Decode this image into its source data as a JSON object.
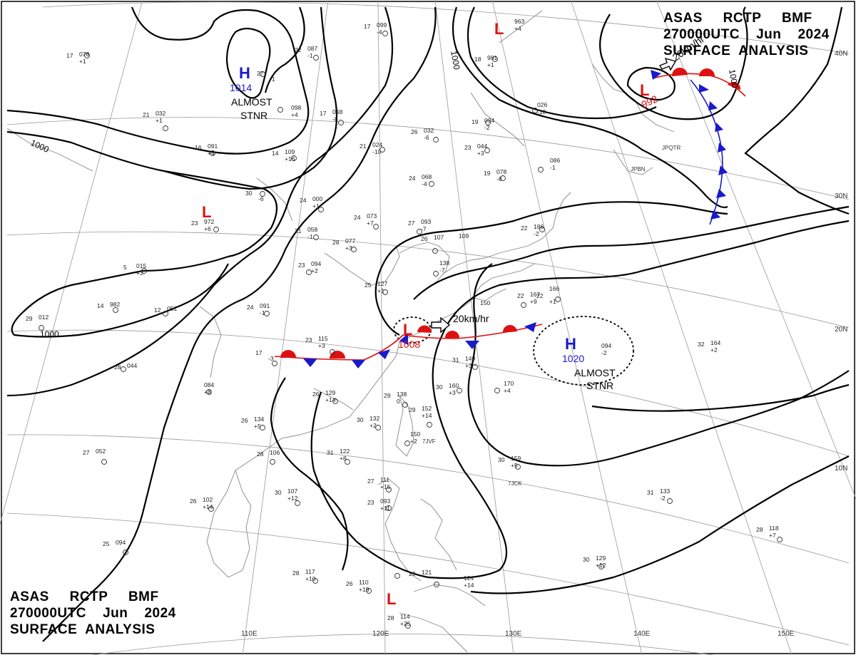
{
  "header": {
    "line1": "ASAS     RCTP     BMF",
    "line2": "270000UTC    Jun    2024",
    "line3": "SURFACE  ANALYSIS"
  },
  "map": {
    "lat_labels": [
      "40N",
      "30N",
      "20N",
      "10N"
    ],
    "lon_labels": [
      "110E",
      "120E",
      "130E",
      "140E",
      "150E"
    ],
    "isobar_labels": [
      "1000",
      "1000",
      "1000",
      "1000"
    ],
    "pressure_systems": [
      {
        "type": "H",
        "value": "1014",
        "note": "ALMOST STNR"
      },
      {
        "type": "L",
        "value": ""
      },
      {
        "type": "L",
        "value": ""
      },
      {
        "type": "L",
        "value": "992"
      },
      {
        "type": "L",
        "value": "1008"
      },
      {
        "type": "H",
        "value": "1020",
        "note": "ALMOST STNR"
      },
      {
        "type": "L",
        "value": ""
      }
    ],
    "note_almost": "ALMOST",
    "note_stnr": "STNR",
    "movement_labels": [
      "20km/hr",
      "20km/hr"
    ],
    "ship_ids": [
      "JPBN",
      "7JCK",
      "7JVF",
      "JPQTR"
    ],
    "colors": {
      "high": "#1a1acc",
      "low": "#dd1111",
      "front_warm": "#dd1111",
      "front_cold": "#1a1acc",
      "isobar": "#000000",
      "coast": "#888888",
      "grid": "#999999"
    },
    "stations": [
      {
        "t": "17",
        "p": "099",
        "w": "-4"
      },
      {
        "t": "22",
        "p": "087",
        "w": "-1"
      },
      {
        "t": "17",
        "p": "078",
        "w": "+1"
      },
      {
        "t": "27",
        "p": "",
        "w": "-1"
      },
      {
        "t": "",
        "p": "098",
        "w": "+4"
      },
      {
        "t": "21",
        "p": "032",
        "w": "+1"
      },
      {
        "t": "17",
        "p": "048",
        "w": "-8"
      },
      {
        "t": "18",
        "p": "981",
        "w": "+1"
      },
      {
        "t": "",
        "p": "963",
        "w": "+4"
      },
      {
        "t": "16",
        "p": "091",
        "w": "+4"
      },
      {
        "t": "14",
        "p": "109",
        "w": "+16"
      },
      {
        "t": "21",
        "p": "024",
        "w": "-10"
      },
      {
        "t": "26",
        "p": "032",
        "w": "-6"
      },
      {
        "t": "19",
        "p": "034",
        "w": "-2"
      },
      {
        "t": "",
        "p": "026",
        "w": "-10"
      },
      {
        "t": "23",
        "p": "044",
        "w": "+3"
      },
      {
        "t": "30",
        "p": "",
        "w": "-6"
      },
      {
        "t": "23",
        "p": "972",
        "w": "+6"
      },
      {
        "t": "24",
        "p": "000",
        "w": "+1"
      },
      {
        "t": "24",
        "p": "068",
        "w": "-4"
      },
      {
        "t": "19",
        "p": "078",
        "w": "-8"
      },
      {
        "t": "",
        "p": "086",
        "w": "-1"
      },
      {
        "t": "21",
        "p": "058",
        "w": "-1"
      },
      {
        "t": "24",
        "p": "073",
        "w": "+7"
      },
      {
        "t": "27",
        "p": "093",
        "w": "-7"
      },
      {
        "t": "28",
        "p": "077",
        "w": "+3"
      },
      {
        "t": "26",
        "p": "107",
        "w": ""
      },
      {
        "t": "",
        "p": "109",
        "w": ""
      },
      {
        "t": "22",
        "p": "186",
        "w": "-2"
      },
      {
        "t": "5",
        "p": "015",
        "w": "+3"
      },
      {
        "t": "23",
        "p": "094",
        "w": "+2"
      },
      {
        "t": "",
        "p": "138",
        "w": "-7"
      },
      {
        "t": "25",
        "p": "127",
        "w": "+1"
      },
      {
        "t": "14",
        "p": "982",
        "w": ""
      },
      {
        "t": "12",
        "p": "051",
        "w": ""
      },
      {
        "t": "24",
        "p": "091",
        "w": "-1"
      },
      {
        "t": "",
        "p": "150",
        "w": ""
      },
      {
        "t": "22",
        "p": "167",
        "w": "+9"
      },
      {
        "t": "22",
        "p": "",
        "w": "+1"
      },
      {
        "t": "",
        "p": "166",
        "w": ""
      },
      {
        "t": "29",
        "p": "012",
        "w": ""
      },
      {
        "t": "23",
        "p": "115",
        "w": "+3"
      },
      {
        "t": "17",
        "p": "",
        "w": "-3"
      },
      {
        "t": "",
        "p": "094",
        "w": "-2"
      },
      {
        "t": "32",
        "p": "164",
        "w": "+2"
      },
      {
        "t": "28",
        "p": "044",
        "w": ""
      },
      {
        "t": "31",
        "p": "149",
        "w": "+3"
      },
      {
        "t": "",
        "p": "170",
        "w": "+4"
      },
      {
        "t": "",
        "p": "084",
        "w": "+8"
      },
      {
        "t": "26",
        "p": "129",
        "w": "+14"
      },
      {
        "t": "29",
        "p": "138",
        "w": "0"
      },
      {
        "t": "30",
        "p": "160",
        "w": "+3"
      },
      {
        "t": "26",
        "p": "134",
        "w": "+5"
      },
      {
        "t": "30",
        "p": "132",
        "w": "+2"
      },
      {
        "t": "29",
        "p": "152",
        "w": "+14"
      },
      {
        "t": "",
        "p": "150",
        "w": "+2"
      },
      {
        "t": "28",
        "p": "106",
        "w": ""
      },
      {
        "t": "31",
        "p": "122",
        "w": "+8"
      },
      {
        "t": "27",
        "p": "052",
        "w": ""
      },
      {
        "t": "30",
        "p": "159",
        "w": "+5"
      },
      {
        "t": "27",
        "p": "111",
        "w": "+15"
      },
      {
        "t": "30",
        "p": "107",
        "w": "+12"
      },
      {
        "t": "26",
        "p": "102",
        "w": "+14"
      },
      {
        "t": "31",
        "p": "133",
        "w": "-2"
      },
      {
        "t": "23",
        "p": "093",
        "w": "+11"
      },
      {
        "t": "28",
        "p": "118",
        "w": "+7"
      },
      {
        "t": "25",
        "p": "094",
        "w": ""
      },
      {
        "t": "30",
        "p": "129",
        "w": "+12"
      },
      {
        "t": "28",
        "p": "117",
        "w": "+10"
      },
      {
        "t": "26",
        "p": "110",
        "w": "+19"
      },
      {
        "t": "29",
        "p": "121",
        "w": ""
      },
      {
        "t": "",
        "p": "124",
        "w": "+14"
      },
      {
        "t": "28",
        "p": "114",
        "w": "+25"
      }
    ]
  }
}
